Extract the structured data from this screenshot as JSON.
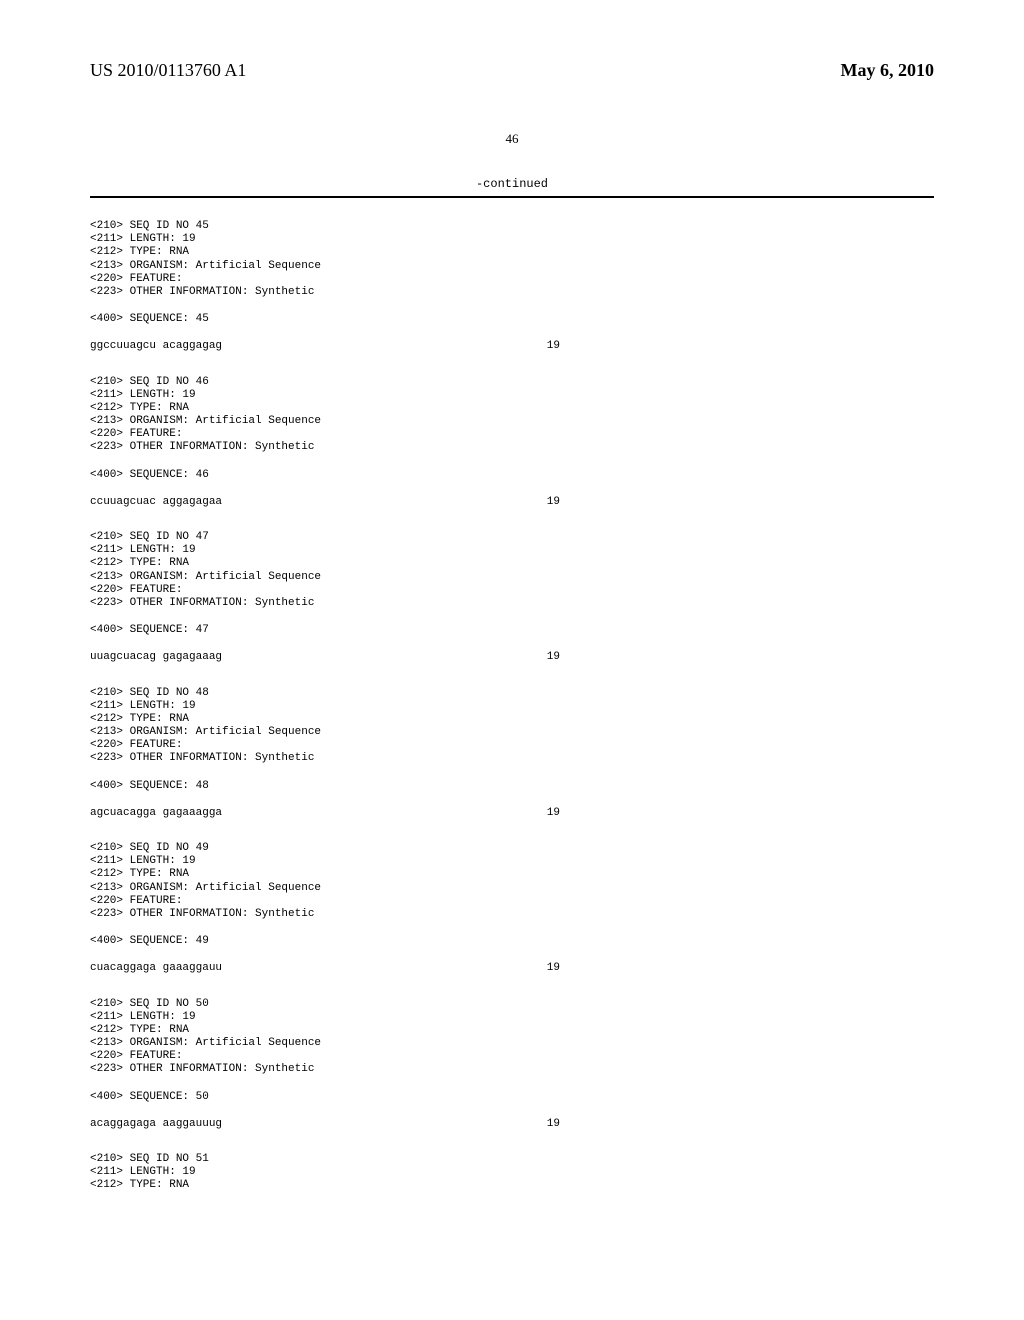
{
  "header": {
    "pub_number": "US 2010/0113760 A1",
    "pub_date": "May 6, 2010"
  },
  "page_number": "46",
  "continued_label": "-continued",
  "sequences": [
    {
      "meta": [
        "<210> SEQ ID NO 45",
        "<211> LENGTH: 19",
        "<212> TYPE: RNA",
        "<213> ORGANISM: Artificial Sequence",
        "<220> FEATURE:",
        "<223> OTHER INFORMATION: Synthetic"
      ],
      "seq_400": "<400> SEQUENCE: 45",
      "seq_text": "ggccuuagcu acaggagag",
      "seq_pos": "19"
    },
    {
      "meta": [
        "<210> SEQ ID NO 46",
        "<211> LENGTH: 19",
        "<212> TYPE: RNA",
        "<213> ORGANISM: Artificial Sequence",
        "<220> FEATURE:",
        "<223> OTHER INFORMATION: Synthetic"
      ],
      "seq_400": "<400> SEQUENCE: 46",
      "seq_text": "ccuuagcuac aggagagaa",
      "seq_pos": "19"
    },
    {
      "meta": [
        "<210> SEQ ID NO 47",
        "<211> LENGTH: 19",
        "<212> TYPE: RNA",
        "<213> ORGANISM: Artificial Sequence",
        "<220> FEATURE:",
        "<223> OTHER INFORMATION: Synthetic"
      ],
      "seq_400": "<400> SEQUENCE: 47",
      "seq_text": "uuagcuacag gagagaaag",
      "seq_pos": "19"
    },
    {
      "meta": [
        "<210> SEQ ID NO 48",
        "<211> LENGTH: 19",
        "<212> TYPE: RNA",
        "<213> ORGANISM: Artificial Sequence",
        "<220> FEATURE:",
        "<223> OTHER INFORMATION: Synthetic"
      ],
      "seq_400": "<400> SEQUENCE: 48",
      "seq_text": "agcuacagga gagaaagga",
      "seq_pos": "19"
    },
    {
      "meta": [
        "<210> SEQ ID NO 49",
        "<211> LENGTH: 19",
        "<212> TYPE: RNA",
        "<213> ORGANISM: Artificial Sequence",
        "<220> FEATURE:",
        "<223> OTHER INFORMATION: Synthetic"
      ],
      "seq_400": "<400> SEQUENCE: 49",
      "seq_text": "cuacaggaga gaaaggauu",
      "seq_pos": "19"
    },
    {
      "meta": [
        "<210> SEQ ID NO 50",
        "<211> LENGTH: 19",
        "<212> TYPE: RNA",
        "<213> ORGANISM: Artificial Sequence",
        "<220> FEATURE:",
        "<223> OTHER INFORMATION: Synthetic"
      ],
      "seq_400": "<400> SEQUENCE: 50",
      "seq_text": "acaggagaga aaggauuug",
      "seq_pos": "19"
    },
    {
      "meta": [
        "<210> SEQ ID NO 51",
        "<211> LENGTH: 19",
        "<212> TYPE: RNA"
      ],
      "seq_400": null,
      "seq_text": null,
      "seq_pos": null
    }
  ]
}
